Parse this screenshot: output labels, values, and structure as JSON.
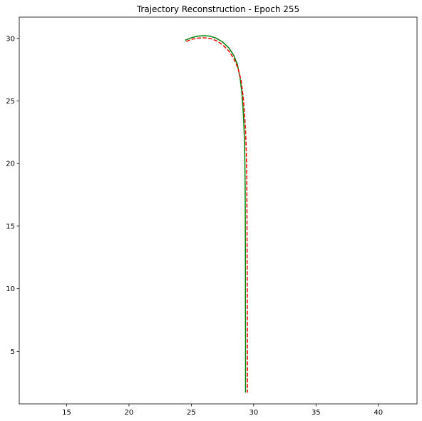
{
  "chart_data": {
    "type": "line",
    "title": "Trajectory Reconstruction - Epoch 255",
    "xlabel": "",
    "ylabel": "",
    "xlim": [
      11.2,
      43.1
    ],
    "ylim": [
      0.8,
      31.7
    ],
    "xticks": [
      15,
      20,
      25,
      30,
      35,
      40
    ],
    "yticks": [
      5,
      10,
      15,
      20,
      25,
      30
    ],
    "grid": false,
    "legend": "none",
    "series": [
      {
        "color": "#008000",
        "style": "solid",
        "points": [
          [
            24.5,
            29.85
          ],
          [
            25.0,
            30.05
          ],
          [
            25.5,
            30.18
          ],
          [
            26.0,
            30.22
          ],
          [
            26.5,
            30.18
          ],
          [
            27.0,
            30.02
          ],
          [
            27.5,
            29.72
          ],
          [
            28.0,
            29.25
          ],
          [
            28.4,
            28.65
          ],
          [
            28.7,
            27.9
          ],
          [
            28.9,
            26.9
          ],
          [
            29.05,
            25.7
          ],
          [
            29.15,
            24.4
          ],
          [
            29.22,
            23.0
          ],
          [
            29.27,
            21.5
          ],
          [
            29.3,
            20.0
          ],
          [
            29.32,
            17.5
          ],
          [
            29.33,
            15.0
          ],
          [
            29.34,
            12.0
          ],
          [
            29.34,
            9.0
          ],
          [
            29.35,
            6.0
          ],
          [
            29.35,
            3.5
          ],
          [
            29.35,
            1.7
          ]
        ]
      },
      {
        "color": "#ff0000",
        "style": "dashed",
        "points": [
          [
            24.6,
            29.75
          ],
          [
            25.0,
            29.92
          ],
          [
            25.5,
            30.02
          ],
          [
            26.0,
            30.05
          ],
          [
            26.5,
            30.0
          ],
          [
            27.0,
            29.82
          ],
          [
            27.5,
            29.5
          ],
          [
            28.0,
            29.0
          ],
          [
            28.4,
            28.4
          ],
          [
            28.75,
            27.6
          ],
          [
            29.0,
            26.6
          ],
          [
            29.15,
            25.4
          ],
          [
            29.27,
            24.0
          ],
          [
            29.35,
            22.6
          ],
          [
            29.4,
            21.2
          ],
          [
            29.44,
            19.5
          ],
          [
            29.46,
            17.0
          ],
          [
            29.47,
            14.0
          ],
          [
            29.48,
            11.0
          ],
          [
            29.49,
            8.0
          ],
          [
            29.5,
            5.0
          ],
          [
            29.5,
            3.0
          ],
          [
            29.5,
            1.7
          ]
        ]
      }
    ]
  }
}
